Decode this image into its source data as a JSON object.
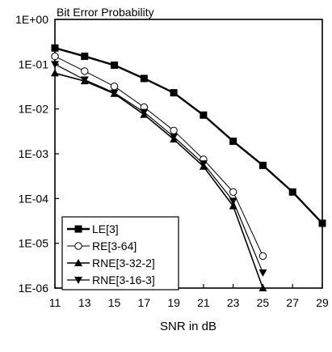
{
  "chart_data": {
    "type": "line",
    "title": "Bit Error Probability",
    "xlabel": "SNR in dB",
    "ylabel": "",
    "x_scale": "linear",
    "y_scale": "log",
    "xlim": [
      11,
      29
    ],
    "ylim": [
      1e-06,
      1
    ],
    "x_ticks": [
      "11",
      "13",
      "15",
      "17",
      "19",
      "21",
      "23",
      "25",
      "27",
      "29"
    ],
    "y_ticks": [
      "1E+00",
      "1E-01",
      "1E-02",
      "1E-03",
      "1E-04",
      "1E-05",
      "1E-06"
    ],
    "grid": false,
    "legend_position": "bottom-left",
    "series": [
      {
        "name": "LE[3]",
        "marker": "square",
        "x": [
          11,
          13,
          15,
          17,
          19,
          21,
          23,
          25,
          27,
          29
        ],
        "y": [
          0.23,
          0.15,
          0.095,
          0.048,
          0.023,
          0.0073,
          0.0019,
          0.00055,
          0.00014,
          2.8e-05
        ]
      },
      {
        "name": "RE[3-64]",
        "marker": "circle",
        "x": [
          11,
          13,
          15,
          17,
          19,
          21,
          23,
          25
        ],
        "y": [
          0.15,
          0.07,
          0.032,
          0.011,
          0.0033,
          0.00075,
          0.00014,
          5.2e-06
        ]
      },
      {
        "name": "RNE[3-32-2]",
        "marker": "triangle-up",
        "x": [
          11,
          13,
          15,
          17,
          19,
          21,
          23,
          25
        ],
        "y": [
          0.063,
          0.042,
          0.022,
          0.0075,
          0.0021,
          0.00052,
          6.8e-05,
          1e-06
        ]
      },
      {
        "name": "RNE[3-16-3]",
        "marker": "triangle-down",
        "x": [
          11,
          13,
          15,
          17,
          19,
          21,
          23,
          25
        ],
        "y": [
          0.1,
          0.045,
          0.023,
          0.0085,
          0.0024,
          0.0006,
          8.8e-05,
          2.2e-06
        ]
      }
    ]
  }
}
